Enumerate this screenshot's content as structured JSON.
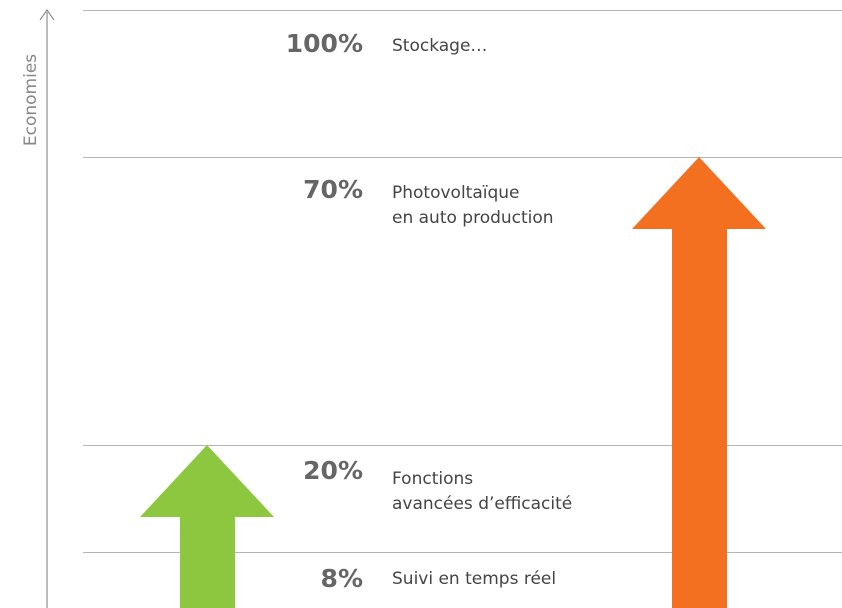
{
  "axis_label": "Economies",
  "levels": [
    {
      "percent": "100%",
      "lines": [
        "Stockage…"
      ]
    },
    {
      "percent": "70%",
      "lines": [
        "Photovoltaïque",
        "en auto production"
      ]
    },
    {
      "percent": "20%",
      "lines": [
        "Fonctions",
        "avancées d’efficacité"
      ]
    },
    {
      "percent": "8%",
      "lines": [
        "Suivi en temps réel"
      ]
    }
  ]
}
